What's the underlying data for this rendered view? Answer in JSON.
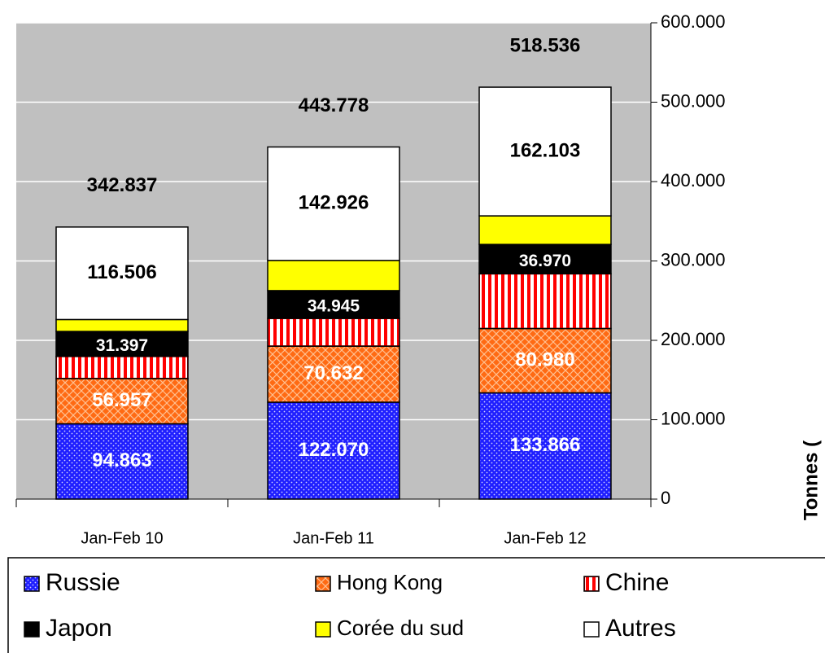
{
  "chart_data": {
    "type": "stacked_bar",
    "categories": [
      "Jan-Feb 10",
      "Jan-Feb 11",
      "Jan-Feb 12"
    ],
    "series": [
      {
        "name": "Russie",
        "color": "#1f1fff",
        "values": [
          94.863,
          122.07,
          133.866
        ],
        "value_labels": [
          "94.863",
          "122.070",
          "133.866"
        ]
      },
      {
        "name": "Hong Kong",
        "color": "#ff6a13",
        "values": [
          56.957,
          70.632,
          80.98
        ],
        "value_labels": [
          "56.957",
          "70.632",
          "80.980"
        ]
      },
      {
        "name": "Chine",
        "color": "#ff0000",
        "values": [
          28,
          35,
          69
        ],
        "value_labels": [
          null,
          null,
          null
        ]
      },
      {
        "name": "Japon",
        "color": "#000000",
        "values": [
          31.397,
          34.945,
          36.97
        ],
        "value_labels": [
          "31.397",
          "34.945",
          "36.970"
        ]
      },
      {
        "name": "Corée du sud",
        "color": "#ffff00",
        "values": [
          15,
          38,
          36
        ],
        "value_labels": [
          null,
          null,
          null
        ]
      },
      {
        "name": "Autres",
        "color": "#ffffff",
        "values": [
          116.506,
          142.926,
          162.103
        ],
        "value_labels": [
          "116.506",
          "142.926",
          "162.103"
        ]
      }
    ],
    "total_labels": [
      "342.837",
      "443.778",
      "518.536"
    ],
    "y_label": "Tonnes (",
    "ylim": [
      0,
      600
    ],
    "yticks": [
      0,
      {
        "value": 100,
        "label": "100.000"
      },
      {
        "value": 200,
        "label": "200.000"
      },
      {
        "value": 300,
        "label": "300.000"
      },
      {
        "value": 400,
        "label": "400.000"
      },
      {
        "value": 500,
        "label": "500.000"
      },
      {
        "value": 600,
        "label": "600.000"
      }
    ],
    "grid": true,
    "legend": "bottom"
  }
}
